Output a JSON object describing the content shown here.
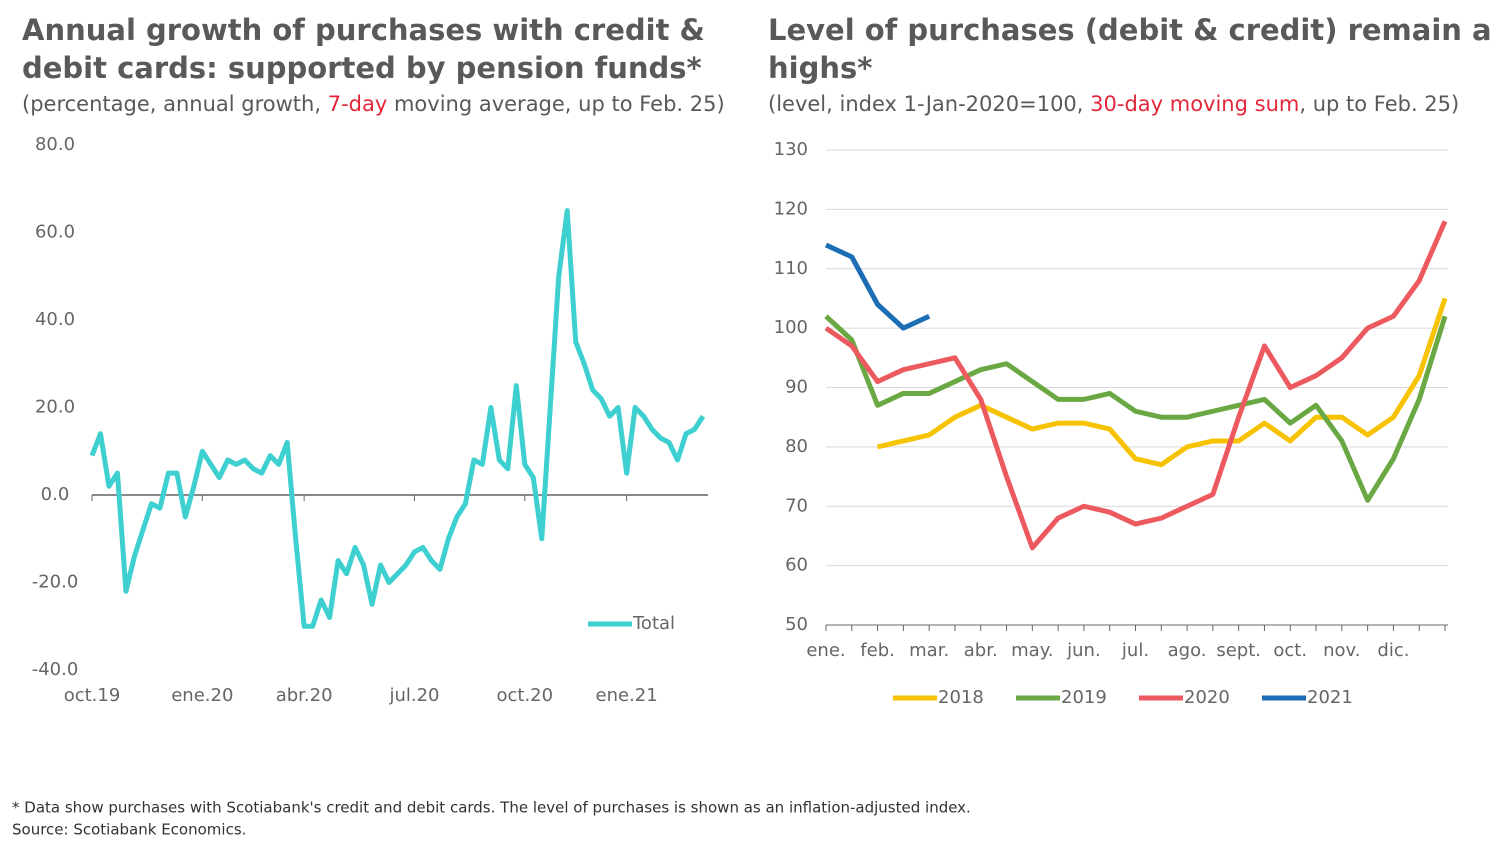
{
  "chart_data": [
    {
      "type": "line",
      "title": "Annual growth of purchases with credit & debit cards: supported by pension funds*",
      "title_lines": [
        "Annual growth of purchases with credit &",
        "debit cards: supported by pension funds*"
      ],
      "subtitle": {
        "before": "(percentage, annual growth, ",
        "highlight": "7-day",
        "after": " moving average, up to Feb. 25)"
      },
      "categories": [
        "oct.19",
        null,
        null,
        null,
        null,
        null,
        null,
        null,
        null,
        null,
        null,
        null,
        null,
        "ene.20",
        null,
        null,
        null,
        null,
        null,
        null,
        null,
        null,
        null,
        null,
        null,
        "abr.20",
        null,
        null,
        null,
        null,
        null,
        null,
        null,
        null,
        null,
        null,
        null,
        null,
        "jul.20",
        null,
        null,
        null,
        null,
        null,
        null,
        null,
        null,
        null,
        null,
        null,
        null,
        "oct.20",
        null,
        null,
        null,
        null,
        null,
        null,
        null,
        null,
        null,
        null,
        null,
        "ene.21",
        null,
        null,
        null,
        null,
        null,
        null,
        null,
        null,
        null
      ],
      "series": [
        {
          "name": "Total",
          "color": "#3ecfd0",
          "values": [
            9,
            14,
            2,
            5,
            -22,
            -14,
            -8,
            -2,
            -3,
            5,
            5,
            -5,
            2,
            10,
            7,
            4,
            8,
            7,
            8,
            6,
            5,
            9,
            7,
            12,
            -10,
            -30,
            -30,
            -24,
            -28,
            -15,
            -18,
            -12,
            -16,
            -25,
            -16,
            -20,
            -18,
            -16,
            -13,
            -12,
            -15,
            -17,
            -10,
            -5,
            -2,
            8,
            7,
            20,
            8,
            6,
            25,
            7,
            4,
            -10,
            20,
            50,
            65,
            35,
            30,
            24,
            22,
            18,
            20,
            5,
            20,
            18,
            15,
            13,
            12,
            8,
            14,
            15,
            18
          ]
        }
      ],
      "ylim": [
        -40,
        80
      ],
      "yticks": [
        {
          "value": -40,
          "label": "-40.0"
        },
        {
          "value": -20,
          "label": "-20.0"
        },
        {
          "value": 0,
          "label": "0.0"
        },
        {
          "value": 20,
          "label": "20.0"
        },
        {
          "value": 40,
          "label": "40.0"
        },
        {
          "value": 60,
          "label": "60.0"
        },
        {
          "value": 80,
          "label": "80.0"
        }
      ],
      "grid": false,
      "legend": "lower right"
    },
    {
      "type": "line",
      "title": "Level of purchases (debit & credit) remain at highs*",
      "title_lines": [
        "Level of purchases (debit & credit) remain at",
        "highs*"
      ],
      "subtitle": {
        "before": "(level, index 1-Jan-2020=100, ",
        "highlight": "30-day moving sum",
        "after": ", up to Feb. 25)"
      },
      "categories": [
        "ene.",
        null,
        "feb.",
        null,
        "mar.",
        null,
        "abr.",
        null,
        "may.",
        null,
        "jun.",
        null,
        "jul.",
        null,
        "ago.",
        null,
        "sept.",
        null,
        "oct.",
        null,
        "nov.",
        null,
        "dic.",
        null,
        null
      ],
      "series": [
        {
          "name": "2018",
          "color": "#f7c200",
          "values": [
            null,
            null,
            80,
            81,
            82,
            85,
            87,
            85,
            83,
            84,
            84,
            83,
            78,
            77,
            80,
            81,
            81,
            84,
            81,
            85,
            85,
            82,
            85,
            92,
            105
          ]
        },
        {
          "name": "2019",
          "color": "#6aa843",
          "values": [
            102,
            98,
            87,
            89,
            89,
            91,
            93,
            94,
            91,
            88,
            88,
            89,
            86,
            85,
            85,
            86,
            87,
            88,
            84,
            87,
            81,
            71,
            78,
            88,
            102
          ]
        },
        {
          "name": "2020",
          "color": "#ec5a60",
          "values": [
            100,
            97,
            91,
            93,
            94,
            95,
            88,
            75,
            63,
            68,
            70,
            69,
            67,
            68,
            70,
            72,
            85,
            97,
            90,
            92,
            95,
            100,
            102,
            108,
            118
          ]
        },
        {
          "name": "2021",
          "color": "#1b6db4",
          "values": [
            114,
            112,
            104,
            100,
            102,
            null,
            null,
            null,
            null,
            null,
            null,
            null,
            null,
            null,
            null,
            null,
            null,
            null,
            null,
            null,
            null,
            null,
            null,
            null,
            null
          ]
        }
      ],
      "ylim": [
        50,
        130
      ],
      "yticks": [
        50,
        60,
        70,
        80,
        90,
        100,
        110,
        120,
        130
      ],
      "grid": true,
      "legend": "bottom"
    }
  ],
  "footnote": "* Data show purchases with Scotiabank's credit and debit cards. The level of purchases is shown as an inflation-adjusted index.",
  "source": "Source: Scotiabank Economics."
}
